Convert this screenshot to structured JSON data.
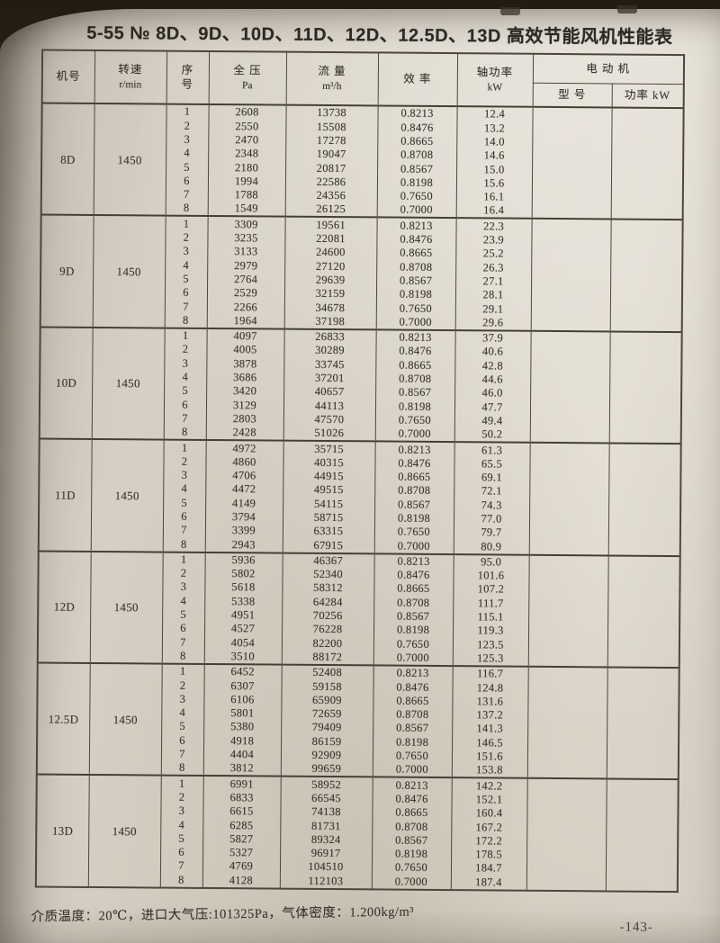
{
  "page": {
    "title": "5-55 № 8D、9D、10D、11D、12D、12.5D、13D 高效节能风机性能表",
    "footnote": "介质温度：20℃，进口大气压:101325Pa，气体密度：1.200kg/m³",
    "page_number": "-143-"
  },
  "table": {
    "header": {
      "machine_no": "机号",
      "speed": "转速",
      "speed_unit": "r/min",
      "seq_top": "序",
      "seq_bottom": "号",
      "pressure": "全 压",
      "pressure_unit": "Pa",
      "flow": "流 量",
      "flow_unit": "m³/h",
      "efficiency": "效 率",
      "shaft_power": "轴功率",
      "shaft_power_unit": "kW",
      "motor": "电 动 机",
      "motor_model": "型 号",
      "motor_power": "功率 kW"
    },
    "groups": [
      {
        "machine": "8D",
        "speed": "1450",
        "motor_model": "",
        "motor_power": "",
        "rows": [
          [
            "1",
            "2608",
            "13738",
            "0.8213",
            "12.4"
          ],
          [
            "2",
            "2550",
            "15508",
            "0.8476",
            "13.2"
          ],
          [
            "3",
            "2470",
            "17278",
            "0.8665",
            "14.0"
          ],
          [
            "4",
            "2348",
            "19047",
            "0.8708",
            "14.6"
          ],
          [
            "5",
            "2180",
            "20817",
            "0.8567",
            "15.0"
          ],
          [
            "6",
            "1994",
            "22586",
            "0.8198",
            "15.6"
          ],
          [
            "7",
            "1788",
            "24356",
            "0.7650",
            "16.1"
          ],
          [
            "8",
            "1549",
            "26125",
            "0.7000",
            "16.4"
          ]
        ]
      },
      {
        "machine": "9D",
        "speed": "1450",
        "motor_model": "",
        "motor_power": "",
        "rows": [
          [
            "1",
            "3309",
            "19561",
            "0.8213",
            "22.3"
          ],
          [
            "2",
            "3235",
            "22081",
            "0.8476",
            "23.9"
          ],
          [
            "3",
            "3133",
            "24600",
            "0.8665",
            "25.2"
          ],
          [
            "4",
            "2979",
            "27120",
            "0.8708",
            "26.3"
          ],
          [
            "5",
            "2764",
            "29639",
            "0.8567",
            "27.1"
          ],
          [
            "6",
            "2529",
            "32159",
            "0.8198",
            "28.1"
          ],
          [
            "7",
            "2266",
            "34678",
            "0.7650",
            "29.1"
          ],
          [
            "8",
            "1964",
            "37198",
            "0.7000",
            "29.6"
          ]
        ]
      },
      {
        "machine": "10D",
        "speed": "1450",
        "motor_model": "",
        "motor_power": "",
        "rows": [
          [
            "1",
            "4097",
            "26833",
            "0.8213",
            "37.9"
          ],
          [
            "2",
            "4005",
            "30289",
            "0.8476",
            "40.6"
          ],
          [
            "3",
            "3878",
            "33745",
            "0.8665",
            "42.8"
          ],
          [
            "4",
            "3686",
            "37201",
            "0.8708",
            "44.6"
          ],
          [
            "5",
            "3420",
            "40657",
            "0.8567",
            "46.0"
          ],
          [
            "6",
            "3129",
            "44113",
            "0.8198",
            "47.7"
          ],
          [
            "7",
            "2803",
            "47570",
            "0.7650",
            "49.4"
          ],
          [
            "8",
            "2428",
            "51026",
            "0.7000",
            "50.2"
          ]
        ]
      },
      {
        "machine": "11D",
        "speed": "1450",
        "motor_model": "",
        "motor_power": "",
        "rows": [
          [
            "1",
            "4972",
            "35715",
            "0.8213",
            "61.3"
          ],
          [
            "2",
            "4860",
            "40315",
            "0.8476",
            "65.5"
          ],
          [
            "3",
            "4706",
            "44915",
            "0.8665",
            "69.1"
          ],
          [
            "4",
            "4472",
            "49515",
            "0.8708",
            "72.1"
          ],
          [
            "5",
            "4149",
            "54115",
            "0.8567",
            "74.3"
          ],
          [
            "6",
            "3794",
            "58715",
            "0.8198",
            "77.0"
          ],
          [
            "7",
            "3399",
            "63315",
            "0.7650",
            "79.7"
          ],
          [
            "8",
            "2943",
            "67915",
            "0.7000",
            "80.9"
          ]
        ]
      },
      {
        "machine": "12D",
        "speed": "1450",
        "motor_model": "",
        "motor_power": "",
        "rows": [
          [
            "1",
            "5936",
            "46367",
            "0.8213",
            "95.0"
          ],
          [
            "2",
            "5802",
            "52340",
            "0.8476",
            "101.6"
          ],
          [
            "3",
            "5618",
            "58312",
            "0.8665",
            "107.2"
          ],
          [
            "4",
            "5338",
            "64284",
            "0.8708",
            "111.7"
          ],
          [
            "5",
            "4951",
            "70256",
            "0.8567",
            "115.1"
          ],
          [
            "6",
            "4527",
            "76228",
            "0.8198",
            "119.3"
          ],
          [
            "7",
            "4054",
            "82200",
            "0.7650",
            "123.5"
          ],
          [
            "8",
            "3510",
            "88172",
            "0.7000",
            "125.3"
          ]
        ]
      },
      {
        "machine": "12.5D",
        "speed": "1450",
        "motor_model": "",
        "motor_power": "",
        "rows": [
          [
            "1",
            "6452",
            "52408",
            "0.8213",
            "116.7"
          ],
          [
            "2",
            "6307",
            "59158",
            "0.8476",
            "124.8"
          ],
          [
            "3",
            "6106",
            "65909",
            "0.8665",
            "131.6"
          ],
          [
            "4",
            "5801",
            "72659",
            "0.8708",
            "137.2"
          ],
          [
            "5",
            "5380",
            "79409",
            "0.8567",
            "141.3"
          ],
          [
            "6",
            "4918",
            "86159",
            "0.8198",
            "146.5"
          ],
          [
            "7",
            "4404",
            "92909",
            "0.7650",
            "151.6"
          ],
          [
            "8",
            "3812",
            "99659",
            "0.7000",
            "153.8"
          ]
        ]
      },
      {
        "machine": "13D",
        "speed": "1450",
        "motor_model": "",
        "motor_power": "",
        "rows": [
          [
            "1",
            "6991",
            "58952",
            "0.8213",
            "142.2"
          ],
          [
            "2",
            "6833",
            "66545",
            "0.8476",
            "152.1"
          ],
          [
            "3",
            "6615",
            "74138",
            "0.8665",
            "160.4"
          ],
          [
            "4",
            "6285",
            "81731",
            "0.8708",
            "167.2"
          ],
          [
            "5",
            "5827",
            "89324",
            "0.8567",
            "172.2"
          ],
          [
            "6",
            "5327",
            "96917",
            "0.8198",
            "178.5"
          ],
          [
            "7",
            "4769",
            "104510",
            "0.7650",
            "184.7"
          ],
          [
            "8",
            "4128",
            "112103",
            "0.7000",
            "187.4"
          ]
        ]
      }
    ]
  }
}
